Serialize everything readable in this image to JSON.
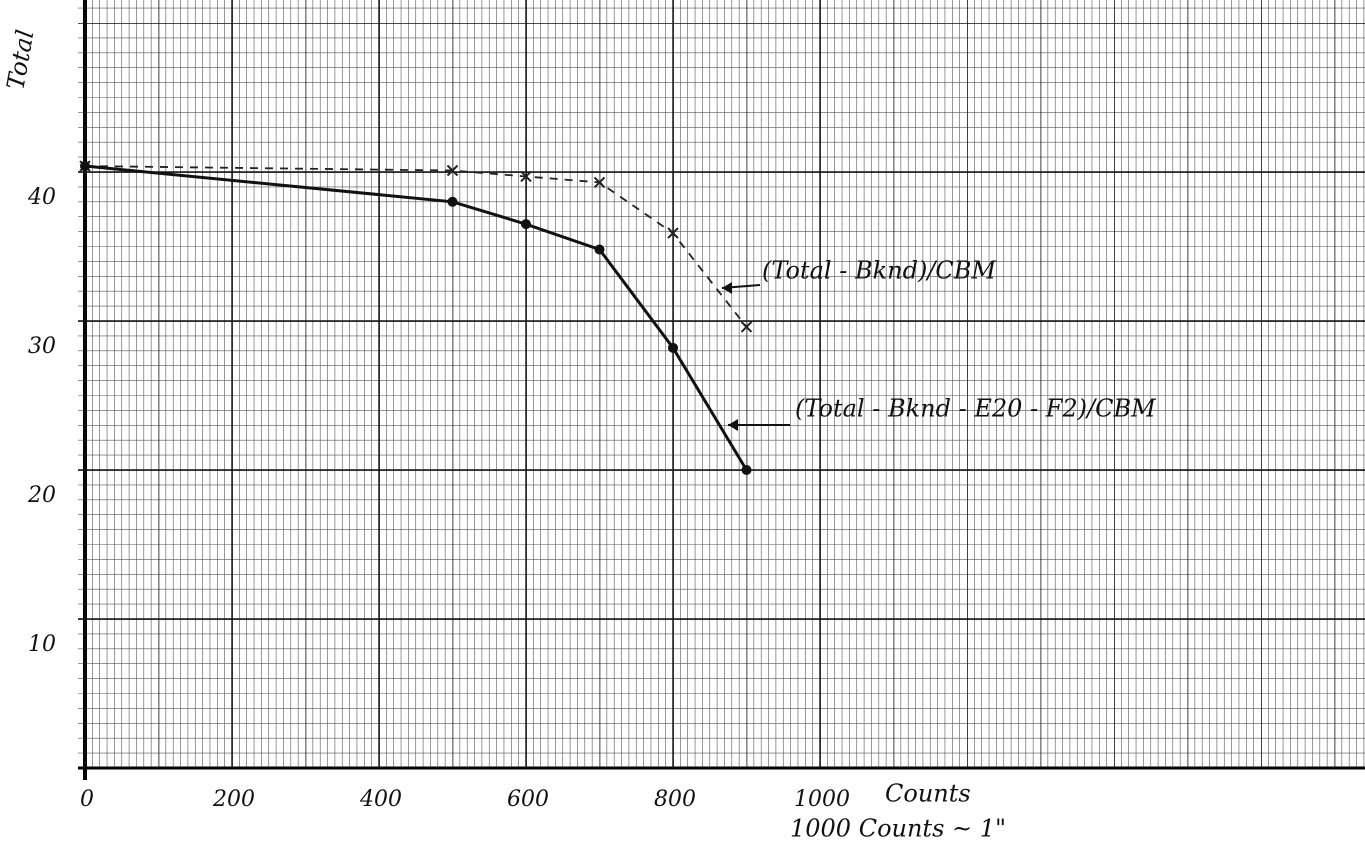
{
  "chart_data": {
    "type": "line",
    "ylabel": "Total",
    "xlabel": "Counts",
    "annotations": [
      "1000 Counts ~ 1\""
    ],
    "x": [
      0,
      500,
      600,
      700,
      800,
      900
    ],
    "series": [
      {
        "name": "(Total - Bknd)/CBM",
        "color": "#222222",
        "style": "dashed",
        "marker": "x",
        "values": [
          40.4,
          40.1,
          39.7,
          39.3,
          35.9,
          29.6
        ]
      },
      {
        "name": "(Total - Bknd - E20 - F2)/CBM",
        "color": "#111111",
        "style": "solid",
        "marker": "dot",
        "values": [
          40.4,
          38.0,
          36.5,
          34.8,
          28.2,
          20.0
        ]
      }
    ],
    "xlim": [
      0,
      1000
    ],
    "ylim": [
      0,
      40
    ],
    "xticks": [
      0,
      200,
      400,
      600,
      800,
      1000
    ],
    "yticks": [
      10,
      20,
      30,
      40
    ],
    "grid": true
  }
}
